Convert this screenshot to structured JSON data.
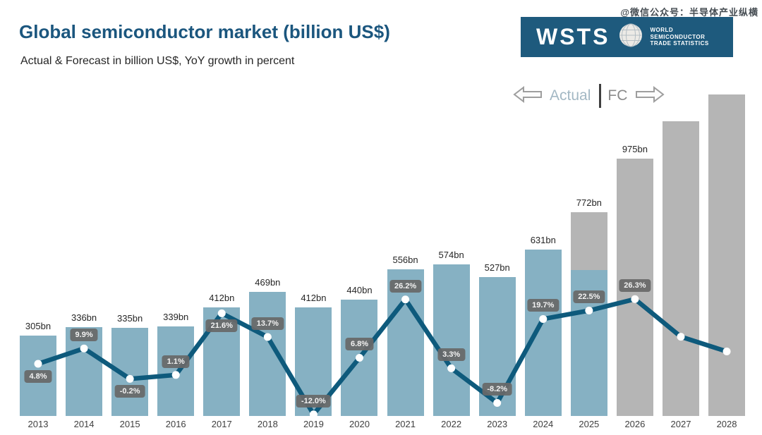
{
  "header": {
    "title": "Global semiconductor market (billion US$)",
    "subtitle": "Actual & Forecast in billion US$, YoY growth in percent",
    "watermark": "@微信公众号：半导体产业纵横"
  },
  "logo": {
    "acronym": "WSTS",
    "name_lines": [
      "WORLD",
      "SEMICONDUCTOR",
      "TRADE STATISTICS"
    ],
    "bg_color": "#1e5a7d"
  },
  "legend": {
    "actual_label": "Actual",
    "fc_label": "FC",
    "left_arrow_icon": "arrow-left-icon",
    "right_arrow_icon": "arrow-right-icon"
  },
  "chart_data": {
    "type": "bar",
    "subtype": "combo-bar-line",
    "title": "Global semiconductor market (billion US$)",
    "subtitle": "Actual & Forecast in billion US$, YoY growth in percent",
    "categories": [
      "2013",
      "2014",
      "2015",
      "2016",
      "2017",
      "2018",
      "2019",
      "2020",
      "2021",
      "2022",
      "2023",
      "2024",
      "2025",
      "2026",
      "2027",
      "2028"
    ],
    "series": [
      {
        "name": "Market size",
        "type": "bar",
        "unit": "billion US$",
        "values": [
          305,
          336,
          335,
          339,
          412,
          469,
          412,
          440,
          556,
          574,
          527,
          631,
          772,
          975,
          1117,
          1218
        ],
        "labels": [
          "305bn",
          "336bn",
          "335bn",
          "339bn",
          "412bn",
          "469bn",
          "412bn",
          "440bn",
          "556bn",
          "574bn",
          "527bn",
          "631bn",
          "772bn",
          "975bn",
          "",
          ""
        ],
        "segments": [
          "actual",
          "actual",
          "actual",
          "actual",
          "actual",
          "actual",
          "actual",
          "actual",
          "actual",
          "actual",
          "actual",
          "actual",
          "mixed",
          "forecast",
          "forecast",
          "forecast"
        ],
        "mixed_actual_value": 553
      },
      {
        "name": "YoY growth",
        "type": "line",
        "unit": "percent",
        "values": [
          4.8,
          9.9,
          -0.2,
          1.1,
          21.6,
          13.7,
          -12.0,
          6.8,
          26.2,
          3.3,
          -8.2,
          19.7,
          22.5,
          26.3,
          13.8,
          8.9
        ],
        "labels": [
          "4.8%",
          "9.9%",
          "-0.2%",
          "1.1%",
          "21.6%",
          "13.7%",
          "-12.0%",
          "6.8%",
          "26.2%",
          "3.3%",
          "-8.2%",
          "19.7%",
          "22.5%",
          "26.3%",
          "",
          ""
        ],
        "label_side": [
          "below",
          "above",
          "below",
          "above",
          "below",
          "above",
          "above",
          "above",
          "above",
          "above",
          "above",
          "above",
          "above",
          "above",
          "",
          ""
        ]
      }
    ],
    "colors": {
      "bar_actual": "#86b1c3",
      "bar_forecast": "#b5b5b5",
      "line": "#0e5a7c",
      "dot": "#ffffff",
      "pill_bg": "#686868",
      "pill_text": "#f2f2f2",
      "title": "#1b567e"
    },
    "axes": {
      "y_axis_visible": false,
      "gridlines": false,
      "x_labels_visible": true,
      "bar_value_range_shown": [
        0,
        975
      ],
      "pct_labels_range_shown": [
        -12.0,
        26.3
      ]
    },
    "legend_position": "top-right"
  }
}
